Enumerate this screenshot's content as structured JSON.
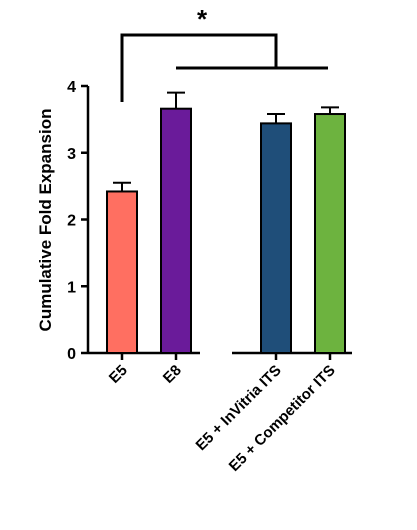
{
  "chart_data": {
    "type": "bar",
    "title": "",
    "xlabel": "",
    "ylabel": "Cumulative  Fold Expansion",
    "ylim": [
      0,
      4
    ],
    "yticks": [
      0,
      1,
      2,
      3,
      4
    ],
    "grid": false,
    "legend": "none",
    "categories": [
      "E5",
      "E8",
      "E5 + InVitria ITS",
      "E5 + Competitor ITS"
    ],
    "values": [
      2.42,
      3.66,
      3.44,
      3.58
    ],
    "errors": [
      0.13,
      0.24,
      0.14,
      0.1
    ],
    "colors": [
      "#FF6F61",
      "#6A1B9A",
      "#1F4E79",
      "#6DB33F"
    ],
    "annotations": [
      {
        "text": "*",
        "type": "significance-bracket"
      }
    ]
  }
}
